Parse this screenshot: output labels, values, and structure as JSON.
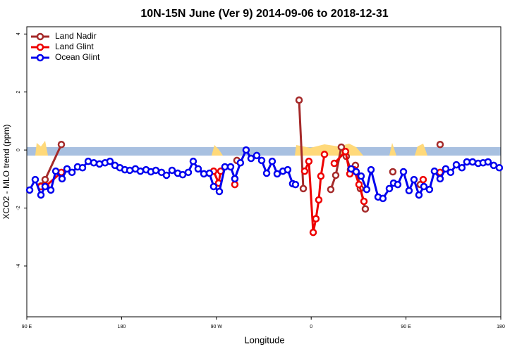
{
  "chart_data": {
    "type": "line",
    "title": "10N-15N June (Ver 9)   2014-09-06 to 2018-12-31",
    "x_label": "Longitude",
    "y_label": "XCO2 - MLO trend (ppm)",
    "xlim": [
      90,
      540
    ],
    "ylim": [
      -5.75,
      4.25
    ],
    "xticks": [
      {
        "value": 90,
        "label": "90 E"
      },
      {
        "value": 180,
        "label": "180"
      },
      {
        "value": 270,
        "label": "90 W"
      },
      {
        "value": 360,
        "label": "0"
      },
      {
        "value": 450,
        "label": "90 E"
      },
      {
        "value": 540,
        "label": "180"
      }
    ],
    "yticks": [
      -4,
      -2,
      0,
      2,
      4
    ],
    "legend": "top-left",
    "series": [
      {
        "name": "Land Nadir",
        "color": "#a52a2a",
        "x": [
          103.4,
          107.4,
          122.8,
          200,
          289.5,
          340,
          348.5,
          352.5,
          370,
          378.6,
          383.3,
          388.6,
          393.3,
          397.3,
          402,
          406.7,
          411.4,
          425,
          437.5,
          450,
          463.6,
          470,
          482.4
        ],
        "values": [
          -1.24,
          -1.02,
          0.19,
          null,
          -0.36,
          null,
          1.72,
          -1.33,
          null,
          -1.36,
          -0.87,
          0.1,
          -0.22,
          -0.68,
          -0.53,
          -1.33,
          -2.03,
          null,
          -0.75,
          null,
          -1.19,
          null,
          0.19
        ]
      },
      {
        "name": "Land Glint",
        "color": "#ee0000",
        "x": [
          103.4,
          108.1,
          122.8,
          200,
          267.4,
          272.1,
          274.1,
          280,
          287.5,
          320,
          353.8,
          357.8,
          361.9,
          364.5,
          367.2,
          369.2,
          372.6,
          378,
          381.9,
          392.6,
          396.7,
          400.7,
          405.4,
          410.1,
          440,
          466.3,
          475,
          482.4
        ],
        "values": [
          -1.26,
          -1.24,
          -0.77,
          null,
          -0.73,
          -1.14,
          -0.73,
          null,
          -1.19,
          null,
          -0.73,
          -0.39,
          -2.84,
          -2.37,
          -1.72,
          -0.9,
          -0.15,
          null,
          -0.46,
          -0.05,
          -0.82,
          -0.68,
          -1.19,
          -1.77,
          null,
          -1.02,
          null,
          -0.77
        ]
      },
      {
        "name": "Ocean Glint",
        "color": "#0000ee",
        "x": [
          92.7,
          98,
          103.4,
          107.4,
          112.8,
          117.5,
          123.5,
          128.2,
          132.9,
          138.2,
          142.9,
          148.3,
          153.6,
          159,
          164.3,
          169,
          173.7,
          178.4,
          183.1,
          187.8,
          193.1,
          197.8,
          203.2,
          207.8,
          212.5,
          217.9,
          222.6,
          227.9,
          233.3,
          238,
          243.3,
          248,
          252.7,
          258.1,
          263.4,
          267.4,
          272.8,
          278.1,
          283.5,
          287.5,
          292.8,
          298.2,
          302.9,
          308.3,
          313,
          317.7,
          323,
          327.7,
          333.1,
          337.7,
          342.4,
          345.1,
          370,
          398,
          402.7,
          407.4,
          412.7,
          416.8,
          423.5,
          428.1,
          434.2,
          438.2,
          442.2,
          447.6,
          452.9,
          457.6,
          462.3,
          467,
          472.3,
          477,
          482.4,
          487.7,
          492.4,
          497.8,
          503.1,
          507.8,
          513.2,
          518.5,
          523.2,
          527.9,
          533.3,
          538.6
        ],
        "values": [
          -1.38,
          -1.02,
          -1.55,
          -1.26,
          -1.38,
          -0.73,
          -0.99,
          -0.65,
          -0.77,
          -0.58,
          -0.61,
          -0.39,
          -0.44,
          -0.48,
          -0.44,
          -0.39,
          -0.53,
          -0.61,
          -0.68,
          -0.7,
          -0.65,
          -0.73,
          -0.68,
          -0.75,
          -0.7,
          -0.77,
          -0.87,
          -0.7,
          -0.8,
          -0.85,
          -0.77,
          -0.39,
          -0.65,
          -0.82,
          -0.8,
          -1.26,
          -1.43,
          -0.58,
          -0.58,
          -0.99,
          -0.44,
          0.0,
          -0.29,
          -0.19,
          -0.36,
          -0.8,
          -0.39,
          -0.82,
          -0.73,
          -0.68,
          -1.16,
          -1.19,
          null,
          -0.65,
          -0.75,
          -0.9,
          -1.36,
          -0.68,
          -1.62,
          -1.67,
          -1.33,
          -1.14,
          -1.19,
          -0.75,
          -1.4,
          -1.02,
          -1.55,
          -1.26,
          -1.36,
          -0.73,
          -0.99,
          -0.65,
          -0.77,
          -0.51,
          -0.61,
          -0.41,
          -0.41,
          -0.46,
          -0.44,
          -0.41,
          -0.53,
          -0.61
        ]
      }
    ]
  }
}
